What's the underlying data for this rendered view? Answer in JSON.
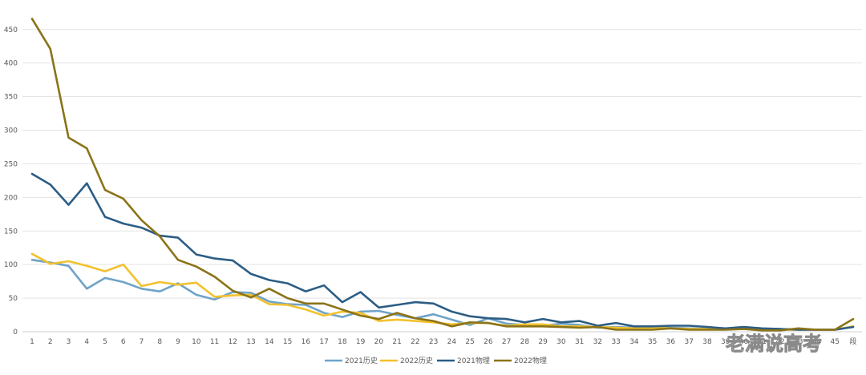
{
  "chart_data": {
    "type": "line",
    "title": "",
    "xlabel": "",
    "ylabel": "",
    "x": [
      "1",
      "2",
      "3",
      "4",
      "5",
      "6",
      "7",
      "8",
      "9",
      "10",
      "11",
      "12",
      "13",
      "14",
      "15",
      "16",
      "17",
      "18",
      "19",
      "20",
      "21",
      "22",
      "23",
      "24",
      "25",
      "26",
      "27",
      "28",
      "29",
      "30",
      "31",
      "32",
      "33",
      "34",
      "35",
      "36",
      "37",
      "38",
      "39",
      "40",
      "41",
      "42",
      "43",
      "44",
      "45",
      "46"
    ],
    "x_tick_labels": [
      "1",
      "2",
      "3",
      "4",
      "5",
      "6",
      "7",
      "8",
      "9",
      "10",
      "11",
      "12",
      "13",
      "14",
      "15",
      "16",
      "17",
      "18",
      "19",
      "20",
      "21",
      "22",
      "23",
      "24",
      "25",
      "26",
      "27",
      "28",
      "29",
      "30",
      "31",
      "32",
      "33",
      "34",
      "35",
      "36",
      "37",
      "38",
      "39",
      "40",
      "41",
      "42",
      "43",
      "44",
      "45",
      "段"
    ],
    "yticks": [
      "0",
      "50",
      "100",
      "150",
      "200",
      "250",
      "300",
      "350",
      "400",
      "450"
    ],
    "ylim": [
      0,
      470
    ],
    "grid": true,
    "legend_position": "bottom",
    "series": [
      {
        "name": "2021历史",
        "color": "#6fa3c8",
        "values": [
          107,
          103,
          98,
          64,
          80,
          74,
          64,
          60,
          72,
          55,
          48,
          59,
          58,
          45,
          41,
          40,
          28,
          22,
          30,
          31,
          25,
          20,
          26,
          18,
          10,
          20,
          12,
          10,
          9,
          12,
          10,
          6,
          7,
          6,
          7,
          6,
          5,
          4,
          5,
          5,
          4,
          4,
          3,
          3,
          3,
          8
        ]
      },
      {
        "name": "2022历史",
        "color": "#f2c12e",
        "values": [
          116,
          101,
          105,
          98,
          90,
          100,
          68,
          74,
          70,
          73,
          52,
          54,
          55,
          41,
          40,
          33,
          24,
          30,
          28,
          16,
          18,
          16,
          14,
          11,
          13,
          13,
          9,
          11,
          11,
          8,
          8,
          7,
          6,
          5,
          6,
          5,
          4,
          4,
          4,
          4,
          3,
          3,
          3,
          3,
          3,
          8
        ]
      },
      {
        "name": "2021物理",
        "color": "#2c5d85",
        "values": [
          235,
          219,
          189,
          221,
          171,
          161,
          155,
          143,
          140,
          115,
          109,
          106,
          86,
          77,
          72,
          60,
          69,
          44,
          59,
          36,
          40,
          44,
          42,
          30,
          23,
          20,
          19,
          14,
          19,
          14,
          16,
          9,
          13,
          8,
          8,
          9,
          9,
          7,
          5,
          7,
          5,
          4,
          3,
          3,
          3,
          7
        ]
      },
      {
        "name": "2022物理",
        "color": "#8b7318",
        "values": [
          466,
          421,
          289,
          273,
          211,
          198,
          166,
          142,
          107,
          97,
          82,
          61,
          51,
          64,
          50,
          42,
          42,
          33,
          24,
          19,
          28,
          20,
          16,
          8,
          14,
          13,
          8,
          8,
          8,
          7,
          6,
          7,
          3,
          3,
          3,
          5,
          3,
          3,
          3,
          4,
          2,
          2,
          5,
          3,
          3,
          19
        ]
      }
    ]
  },
  "watermark": "老满说高考"
}
